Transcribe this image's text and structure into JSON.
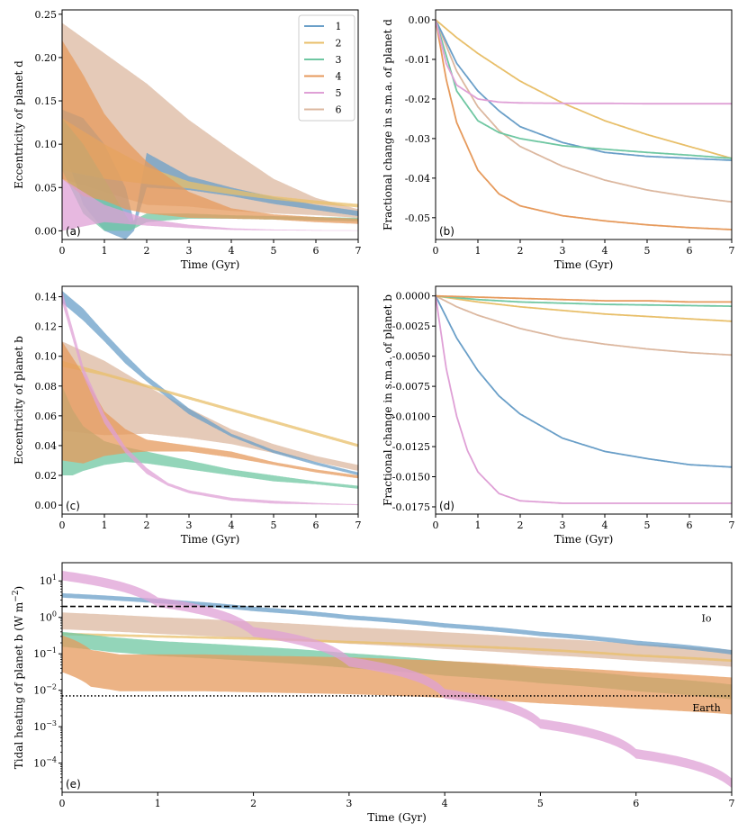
{
  "colors": {
    "1": "#6a9fc8",
    "2": "#e8bf6a",
    "3": "#6fc7a2",
    "4": "#e69a5c",
    "5": "#dfa0d6",
    "6": "#dcb8a0"
  },
  "chart_data": [
    {
      "id": "a",
      "type": "line",
      "panel_label": "(a)",
      "xlabel": "Time (Gyr)",
      "ylabel": "Eccentricity of planet d",
      "xlim": [
        0,
        7
      ],
      "ylim": [
        -0.01,
        0.255
      ],
      "xticks": [
        "0",
        "1",
        "2",
        "3",
        "4",
        "5",
        "6",
        "7"
      ],
      "yticks": [
        "0.00",
        "0.05",
        "0.10",
        "0.15",
        "0.20",
        "0.25"
      ],
      "legend": {
        "placement": "top-right",
        "entries": [
          "1",
          "2",
          "3",
          "4",
          "5",
          "6"
        ]
      },
      "series": [
        {
          "name": "1",
          "x": [
            0,
            0.5,
            1,
            1.5,
            1.7,
            2,
            3,
            4,
            5,
            6,
            7
          ],
          "y": [
            0.12,
            0.08,
            0.05,
            0.02,
            0.005,
            0.07,
            0.055,
            0.045,
            0.035,
            0.027,
            0.02
          ],
          "spread": [
            0.02,
            0.05,
            0.05,
            0.03,
            0.005,
            0.02,
            0.008,
            0.005,
            0.004,
            0.003,
            0.003
          ]
        },
        {
          "name": "2",
          "x": [
            0,
            1,
            2,
            3,
            4,
            5,
            6,
            7
          ],
          "y": [
            0.1,
            0.08,
            0.064,
            0.053,
            0.045,
            0.038,
            0.033,
            0.029
          ],
          "spread": [
            0.03,
            0.02,
            0.01,
            0.004,
            0.003,
            0.002,
            0.002,
            0.002
          ]
        },
        {
          "name": "3",
          "x": [
            0,
            0.5,
            1,
            1.6,
            2,
            3,
            4,
            5,
            6,
            7
          ],
          "y": [
            0.1,
            0.06,
            0.03,
            0.005,
            0.015,
            0.017,
            0.016,
            0.015,
            0.014,
            0.013
          ],
          "spread": [
            0.03,
            0.04,
            0.03,
            0.005,
            0.005,
            0.003,
            0.002,
            0.002,
            0.002,
            0.002
          ]
        },
        {
          "name": "4",
          "x": [
            0,
            0.5,
            1,
            1.5,
            2,
            3,
            4,
            5,
            6,
            7
          ],
          "y": [
            0.14,
            0.11,
            0.085,
            0.065,
            0.05,
            0.03,
            0.02,
            0.016,
            0.013,
            0.011
          ],
          "spread": [
            0.08,
            0.07,
            0.05,
            0.04,
            0.03,
            0.015,
            0.006,
            0.003,
            0.003,
            0.003
          ]
        },
        {
          "name": "5",
          "x": [
            0,
            0.5,
            1,
            1.5,
            2,
            3,
            4,
            5,
            6,
            7
          ],
          "y": [
            0.03,
            0.025,
            0.02,
            0.015,
            0.01,
            0.005,
            0.002,
            0.001,
            0.0005,
            0.0003
          ],
          "spread": [
            0.03,
            0.02,
            0.01,
            0.007,
            0.004,
            0.002,
            0.001,
            0.0005,
            0.0003,
            0.0002
          ]
        },
        {
          "name": "6",
          "x": [
            0,
            1,
            2,
            3,
            4,
            5,
            6,
            7
          ],
          "y": [
            0.15,
            0.125,
            0.1,
            0.078,
            0.058,
            0.04,
            0.028,
            0.02
          ],
          "spread": [
            0.09,
            0.08,
            0.07,
            0.05,
            0.035,
            0.02,
            0.01,
            0.005
          ]
        }
      ]
    },
    {
      "id": "b",
      "type": "line",
      "panel_label": "(b)",
      "xlabel": "Time (Gyr)",
      "ylabel": "Fractional change in s.m.a. of planet d",
      "xlim": [
        0,
        7
      ],
      "ylim": [
        -0.0555,
        0.0025
      ],
      "xticks": [
        "0",
        "1",
        "2",
        "3",
        "4",
        "5",
        "6",
        "7"
      ],
      "yticks": [
        "0.00",
        "-0.01",
        "-0.02",
        "-0.03",
        "-0.04",
        "-0.05"
      ],
      "series": [
        {
          "name": "1",
          "x": [
            0,
            0.5,
            1,
            1.5,
            2,
            3,
            4,
            5,
            6,
            7
          ],
          "y": [
            0,
            -0.011,
            -0.018,
            -0.023,
            -0.027,
            -0.031,
            -0.0335,
            -0.0345,
            -0.035,
            -0.0355
          ]
        },
        {
          "name": "2",
          "x": [
            0,
            0.5,
            1,
            1.5,
            2,
            3,
            4,
            5,
            6,
            7
          ],
          "y": [
            0,
            -0.0045,
            -0.0085,
            -0.012,
            -0.0155,
            -0.021,
            -0.0255,
            -0.029,
            -0.032,
            -0.035
          ]
        },
        {
          "name": "3",
          "x": [
            0,
            0.5,
            1,
            1.5,
            2,
            3,
            4,
            5,
            6,
            7
          ],
          "y": [
            0,
            -0.018,
            -0.0255,
            -0.0285,
            -0.03,
            -0.0318,
            -0.0327,
            -0.0335,
            -0.0342,
            -0.035
          ]
        },
        {
          "name": "4",
          "x": [
            0,
            0.25,
            0.5,
            1,
            1.5,
            2,
            3,
            4,
            5,
            6,
            7
          ],
          "y": [
            0,
            -0.015,
            -0.026,
            -0.038,
            -0.044,
            -0.047,
            -0.0495,
            -0.0508,
            -0.0518,
            -0.0525,
            -0.053
          ]
        },
        {
          "name": "5",
          "x": [
            0,
            0.25,
            0.5,
            1,
            1.5,
            2,
            3,
            4,
            5,
            6,
            7
          ],
          "y": [
            0,
            -0.011,
            -0.0165,
            -0.02,
            -0.0208,
            -0.021,
            -0.0211,
            -0.0211,
            -0.0212,
            -0.0212,
            -0.0212
          ]
        },
        {
          "name": "6",
          "x": [
            0,
            0.5,
            1,
            1.5,
            2,
            3,
            4,
            5,
            6,
            7
          ],
          "y": [
            0,
            -0.013,
            -0.022,
            -0.028,
            -0.032,
            -0.037,
            -0.0405,
            -0.043,
            -0.0447,
            -0.046
          ]
        }
      ]
    },
    {
      "id": "c",
      "type": "line",
      "panel_label": "(c)",
      "xlabel": "Time (Gyr)",
      "ylabel": "Eccentricity of planet b",
      "xlim": [
        0,
        7
      ],
      "ylim": [
        -0.006,
        0.147
      ],
      "xticks": [
        "0",
        "1",
        "2",
        "3",
        "4",
        "5",
        "6",
        "7"
      ],
      "yticks": [
        "0.00",
        "0.02",
        "0.04",
        "0.06",
        "0.08",
        "0.10",
        "0.12",
        "0.14"
      ],
      "series": [
        {
          "name": "1",
          "x": [
            0,
            0.5,
            1,
            1.5,
            2,
            3,
            4,
            5,
            6,
            7
          ],
          "y": [
            0.14,
            0.128,
            0.113,
            0.098,
            0.085,
            0.063,
            0.047,
            0.036,
            0.028,
            0.021
          ],
          "spread": [
            0.004,
            0.004,
            0.003,
            0.003,
            0.002,
            0.002,
            0.001,
            0.001,
            0.001,
            0.001
          ]
        },
        {
          "name": "2",
          "x": [
            0,
            1,
            2,
            3,
            4,
            5,
            6,
            7
          ],
          "y": [
            0.095,
            0.088,
            0.08,
            0.072,
            0.064,
            0.056,
            0.048,
            0.04
          ],
          "spread": [
            0.002,
            0.001,
            0.001,
            0.001,
            0.001,
            0.001,
            0.001,
            0.001
          ]
        },
        {
          "name": "3",
          "x": [
            0,
            0.25,
            0.5,
            1,
            1.5,
            2,
            3,
            4,
            5,
            6,
            7
          ],
          "y": [
            0.05,
            0.042,
            0.038,
            0.035,
            0.034,
            0.032,
            0.027,
            0.022,
            0.018,
            0.015,
            0.012
          ],
          "spread": [
            0.03,
            0.022,
            0.015,
            0.008,
            0.005,
            0.004,
            0.003,
            0.002,
            0.002,
            0.001,
            0.001
          ]
        },
        {
          "name": "4",
          "x": [
            0,
            0.5,
            1,
            1.5,
            2,
            3,
            4,
            5,
            6,
            7
          ],
          "y": [
            0.07,
            0.058,
            0.048,
            0.043,
            0.04,
            0.038,
            0.034,
            0.028,
            0.023,
            0.019
          ],
          "spread": [
            0.04,
            0.03,
            0.015,
            0.008,
            0.004,
            0.002,
            0.002,
            0.001,
            0.001,
            0.001
          ]
        },
        {
          "name": "5",
          "x": [
            0,
            0.5,
            1,
            1.5,
            2,
            2.5,
            3,
            4,
            5,
            6,
            7
          ],
          "y": [
            0.14,
            0.09,
            0.058,
            0.037,
            0.023,
            0.014,
            0.009,
            0.004,
            0.002,
            0.001,
            0.0003
          ],
          "spread": [
            0.004,
            0.003,
            0.003,
            0.002,
            0.002,
            0.001,
            0.001,
            0.001,
            0.001,
            0.0005,
            0.0003
          ]
        },
        {
          "name": "6",
          "x": [
            0,
            1,
            2,
            3,
            4,
            5,
            6,
            7
          ],
          "y": [
            0.08,
            0.072,
            0.064,
            0.055,
            0.046,
            0.038,
            0.031,
            0.025
          ],
          "spread": [
            0.03,
            0.025,
            0.016,
            0.01,
            0.005,
            0.003,
            0.002,
            0.002
          ]
        }
      ]
    },
    {
      "id": "d",
      "type": "line",
      "panel_label": "(d)",
      "xlabel": "Time (Gyr)",
      "ylabel": "Fractional change in s.m.a. of planet b",
      "xlim": [
        0,
        7
      ],
      "ylim": [
        -0.0181,
        0.0008
      ],
      "xticks": [
        "0",
        "1",
        "2",
        "3",
        "4",
        "5",
        "6",
        "7"
      ],
      "yticks": [
        "0.0000",
        "-0.0025",
        "-0.0050",
        "-0.0075",
        "-0.0100",
        "-0.0125",
        "-0.0150",
        "-0.0175"
      ],
      "series": [
        {
          "name": "1",
          "x": [
            0,
            0.5,
            1,
            1.5,
            2,
            3,
            4,
            5,
            6,
            7
          ],
          "y": [
            0,
            -0.0035,
            -0.0062,
            -0.0083,
            -0.0098,
            -0.0118,
            -0.0129,
            -0.0135,
            -0.014,
            -0.0142
          ]
        },
        {
          "name": "2",
          "x": [
            0,
            1,
            2,
            3,
            4,
            5,
            6,
            7
          ],
          "y": [
            0,
            -0.0005,
            -0.0009,
            -0.0012,
            -0.0015,
            -0.0017,
            -0.0019,
            -0.0021
          ]
        },
        {
          "name": "3",
          "x": [
            0,
            1,
            2,
            3,
            4,
            5,
            6,
            7
          ],
          "y": [
            0,
            -0.0003,
            -0.0005,
            -0.0006,
            -0.0007,
            -0.00075,
            -0.0008,
            -0.00085
          ]
        },
        {
          "name": "4",
          "x": [
            0,
            1,
            2,
            3,
            4,
            5,
            6,
            7
          ],
          "y": [
            0,
            -0.0001,
            -0.0002,
            -0.0003,
            -0.0004,
            -0.0004,
            -0.0005,
            -0.0005
          ]
        },
        {
          "name": "5",
          "x": [
            0,
            0.25,
            0.5,
            0.75,
            1,
            1.5,
            2,
            3,
            4,
            5,
            6,
            7
          ],
          "y": [
            0,
            -0.006,
            -0.01,
            -0.0128,
            -0.0146,
            -0.0164,
            -0.017,
            -0.0172,
            -0.0172,
            -0.0172,
            -0.0172,
            -0.0172
          ]
        },
        {
          "name": "6",
          "x": [
            0,
            0.5,
            1,
            2,
            3,
            4,
            5,
            6,
            7
          ],
          "y": [
            0,
            -0.0009,
            -0.0016,
            -0.0027,
            -0.0035,
            -0.004,
            -0.0044,
            -0.0047,
            -0.0049
          ]
        }
      ]
    },
    {
      "id": "e",
      "type": "line",
      "scale": "log",
      "panel_label": "(e)",
      "xlabel": "Time (Gyr)",
      "ylabel": "Tidal heating of planet b (W m",
      "ylabel_sup": "−2",
      "ylabel_close": ")",
      "xlim": [
        0,
        7
      ],
      "ylim_log10": [
        -4.8,
        1.5
      ],
      "xticks": [
        "0",
        "1",
        "2",
        "3",
        "4",
        "5",
        "6",
        "7"
      ],
      "yticks": [
        {
          "base": "10",
          "exp": "1",
          "log": 1
        },
        {
          "base": "10",
          "exp": "0",
          "log": 0
        },
        {
          "base": "10",
          "exp": "−1",
          "log": -1
        },
        {
          "base": "10",
          "exp": "−2",
          "log": -2
        },
        {
          "base": "10",
          "exp": "−3",
          "log": -3
        },
        {
          "base": "10",
          "exp": "−4",
          "log": -4
        }
      ],
      "reference_lines": [
        {
          "label": "Io",
          "value": 2.0,
          "style": "dashed"
        },
        {
          "label": "Earth",
          "value": 0.007,
          "style": "dotted"
        }
      ],
      "series": [
        {
          "name": "1",
          "x": [
            0,
            1,
            2,
            3,
            4,
            5,
            6,
            7
          ],
          "y": [
            4.0,
            2.8,
            1.7,
            1.0,
            0.6,
            0.35,
            0.2,
            0.11
          ],
          "spread_factor": 1.15
        },
        {
          "name": "2",
          "x": [
            0,
            1,
            2,
            3,
            4,
            5,
            6,
            7
          ],
          "y": [
            0.35,
            0.3,
            0.26,
            0.21,
            0.17,
            0.13,
            0.09,
            0.065
          ],
          "spread_factor": 1.08
        },
        {
          "name": "3",
          "x": [
            0,
            0.5,
            1,
            2,
            3,
            4,
            5,
            6,
            7
          ],
          "y": [
            0.25,
            0.18,
            0.14,
            0.1,
            0.065,
            0.04,
            0.025,
            0.015,
            0.009
          ],
          "spread_factor": 1.6
        },
        {
          "name": "4",
          "x": [
            0,
            0.3,
            0.6,
            1,
            1.5,
            2,
            3,
            4,
            5,
            6,
            7
          ],
          "y": [
            0.1,
            0.04,
            0.03,
            0.03,
            0.03,
            0.028,
            0.025,
            0.02,
            0.014,
            0.01,
            0.007
          ],
          "spread_factor": 3.2
        },
        {
          "name": "5",
          "x": [
            0,
            1,
            2,
            3,
            4,
            5,
            6,
            7
          ],
          "y": [
            14,
            2.6,
            0.4,
            0.06,
            0.008,
            0.0012,
            0.00018,
            2.8e-05
          ],
          "spread_factor": 1.35
        },
        {
          "name": "6",
          "x": [
            0,
            1,
            2,
            3,
            4,
            5,
            6,
            7
          ],
          "y": [
            0.8,
            0.6,
            0.45,
            0.32,
            0.23,
            0.16,
            0.11,
            0.075
          ],
          "spread_factor": 1.7
        }
      ]
    }
  ]
}
